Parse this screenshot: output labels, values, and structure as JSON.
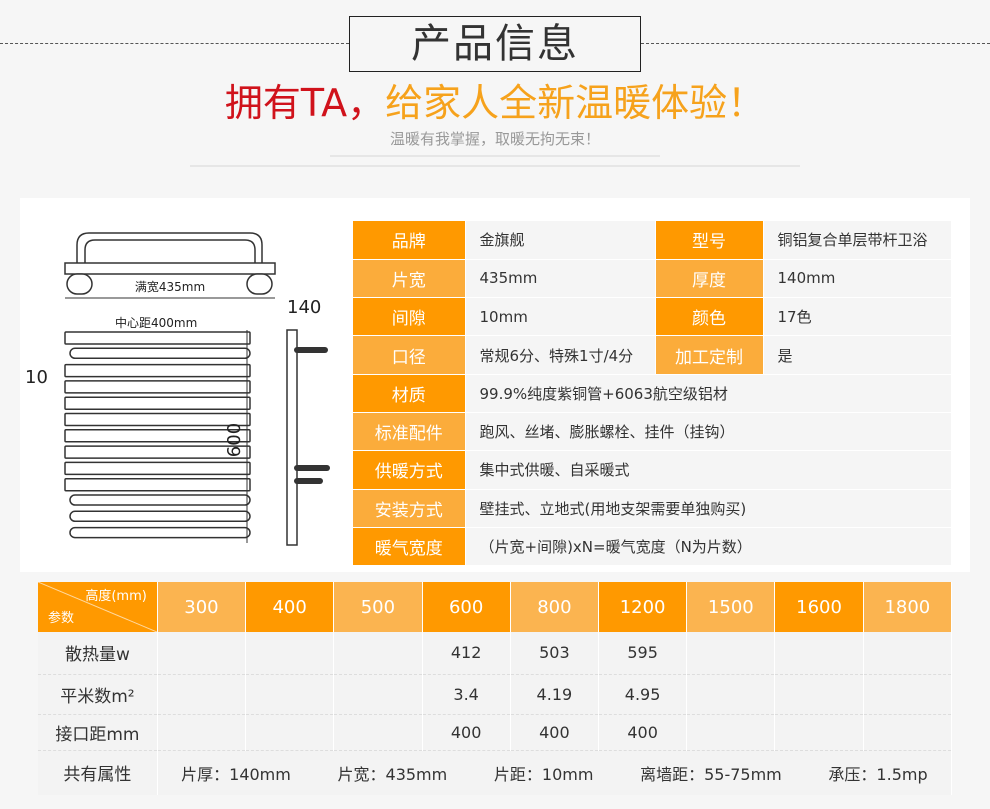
{
  "header": {
    "title": "产品信息",
    "slogan_red": "拥有TA，",
    "slogan_orange": "给家人全新温暖体验！",
    "subtitle": "温暖有我掌握，取暖无拘无束！"
  },
  "diagram": {
    "full_width": "满宽435mm",
    "center_distance": "中心距400mm",
    "gap": "10",
    "height": "600",
    "thickness": "140"
  },
  "colors": {
    "accent": "#ff9900",
    "accent_light": "#fbb450",
    "red": "#d0121b"
  },
  "specs": [
    {
      "l1": "品牌",
      "v1": "金旗舰",
      "l2": "型号",
      "v2": "铜铝复合单层带杆卫浴"
    },
    {
      "l1": "片宽",
      "v1": "435mm",
      "l2": "厚度",
      "v2": "140mm"
    },
    {
      "l1": "间隙",
      "v1": "10mm",
      "l2": "颜色",
      "v2": "17色"
    },
    {
      "l1": "口径",
      "v1": "常规6分、特殊1寸/4分",
      "l2": "加工定制",
      "v2": "是"
    },
    {
      "l1": "材质",
      "v1": "99.9%纯度紫铜管+6063航空级铝材"
    },
    {
      "l1": "标准配件",
      "v1": "跑风、丝堵、膨胀螺栓、挂件（挂钩）"
    },
    {
      "l1": "供暖方式",
      "v1": "集中式供暖、自采暖式"
    },
    {
      "l1": "安装方式",
      "v1": "壁挂式、立地式(用地支架需要单独购买)"
    },
    {
      "l1": "暖气宽度",
      "v1": "（片宽+间隙)xN=暖气宽度（N为片数）"
    }
  ],
  "table": {
    "corner_top": "高度(mm)",
    "corner_bottom": "参数",
    "heights": [
      "300",
      "400",
      "500",
      "600",
      "800",
      "1200",
      "1500",
      "1600",
      "1800"
    ],
    "rows": [
      {
        "label": "散热量w",
        "values": [
          "",
          "",
          "",
          "412",
          "503",
          "595",
          "",
          "",
          ""
        ]
      },
      {
        "label": "平米数m²",
        "values": [
          "",
          "",
          "",
          "3.4",
          "4.19",
          "4.95",
          "",
          "",
          ""
        ]
      },
      {
        "label": "接口距mm",
        "values": [
          "",
          "",
          "",
          "400",
          "400",
          "400",
          "",
          "",
          ""
        ]
      }
    ],
    "common_label": "共有属性",
    "common": [
      "片厚：140mm",
      "片宽：435mm",
      "片距：10mm",
      "离墙距：55-75mm",
      "承压：1.5mp"
    ]
  }
}
